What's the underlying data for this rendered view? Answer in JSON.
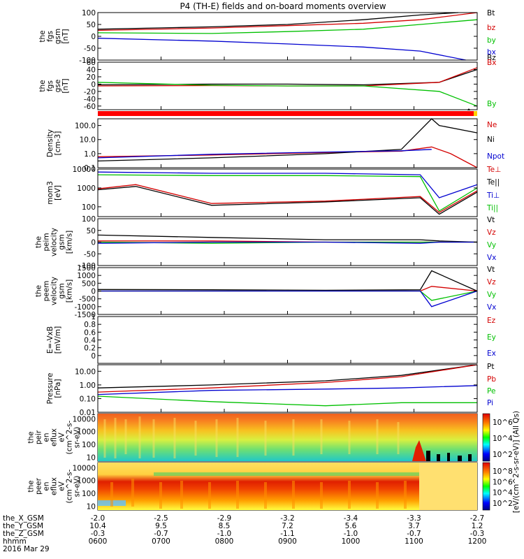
{
  "figure": {
    "title": "P4 (TH-E) fields and on-board moments overview",
    "date_label": "2016 Mar 29",
    "colorbar_label": "[eV/(cm^2-s-sr-eV)] (All Qs)"
  },
  "chart_data": [
    {
      "type": "line",
      "id": "fgs_gsm",
      "ylabel": [
        "the",
        "fgs",
        "gsm",
        "[nT]"
      ],
      "ylim": [
        -100,
        100
      ],
      "yticks": [
        100,
        50,
        0,
        -50,
        -100
      ],
      "yscale": "linear",
      "series": [
        {
          "name": "Bt",
          "color": "#000000",
          "x": [
            0,
            0.3,
            0.5,
            0.7,
            0.85,
            0.95
          ],
          "y": [
            30,
            40,
            50,
            70,
            90,
            100
          ]
        },
        {
          "name": "bz",
          "color": "#d40000",
          "x": [
            0,
            0.3,
            0.5,
            0.7,
            0.85,
            1.0
          ],
          "y": [
            25,
            35,
            45,
            55,
            70,
            100
          ]
        },
        {
          "name": "by",
          "color": "#00c000",
          "x": [
            0,
            0.3,
            0.5,
            0.7,
            0.85,
            1.0
          ],
          "y": [
            15,
            12,
            20,
            30,
            50,
            70
          ]
        },
        {
          "name": "bx",
          "color": "#0000d0",
          "x": [
            0,
            0.3,
            0.5,
            0.7,
            0.85,
            0.97
          ],
          "y": [
            -8,
            -20,
            -32,
            -45,
            -62,
            -100
          ]
        }
      ]
    },
    {
      "type": "line",
      "id": "fgs_gse",
      "ylabel": [
        "the",
        "fgs",
        "gse",
        "[nT]"
      ],
      "ylim": [
        -70,
        60
      ],
      "yticks": [
        60,
        40,
        20,
        0,
        -20,
        -40,
        -60
      ],
      "yscale": "linear",
      "series": [
        {
          "name": "Bz",
          "color": "#000000",
          "x": [
            0,
            0.3,
            0.5,
            0.7,
            0.9,
            1.0
          ],
          "y": [
            -2,
            0,
            0,
            -2,
            5,
            40
          ]
        },
        {
          "name": "Bx",
          "color": "#d40000",
          "x": [
            0,
            0.3,
            0.5,
            0.7,
            0.9,
            1.0
          ],
          "y": [
            -5,
            -4,
            -5,
            -5,
            5,
            45
          ]
        },
        {
          "name": "By",
          "color": "#00c000",
          "x": [
            0,
            0.3,
            0.5,
            0.7,
            0.9,
            1.0
          ],
          "y": [
            5,
            -3,
            -5,
            -5,
            -20,
            -60
          ]
        }
      ]
    },
    {
      "type": "line",
      "id": "density",
      "ylabel": [
        "Density",
        "[cm-3]"
      ],
      "ylim": [
        0.1,
        300
      ],
      "yticks": [
        100.0,
        10.0,
        1.0,
        0.1
      ],
      "ytick_labels": [
        "100.0",
        "10.0",
        "1.0",
        "0.1"
      ],
      "yscale": "log",
      "series": [
        {
          "name": "Ne",
          "color": "#d40000",
          "x": [
            0,
            0.3,
            0.6,
            0.8,
            0.88,
            0.93,
            1.0
          ],
          "y": [
            0.6,
            0.8,
            1.2,
            1.5,
            3,
            1,
            0.1
          ]
        },
        {
          "name": "Ni",
          "color": "#000000",
          "x": [
            0,
            0.3,
            0.6,
            0.8,
            0.88,
            0.9,
            1.0
          ],
          "y": [
            0.3,
            0.5,
            1.0,
            2,
            300,
            100,
            30
          ]
        },
        {
          "name": "Npot",
          "color": "#0000d0",
          "x": [
            0,
            0.3,
            0.6,
            0.8,
            0.88
          ],
          "y": [
            0.5,
            0.9,
            1.3,
            1.6,
            2
          ]
        }
      ]
    },
    {
      "type": "line",
      "id": "temperature",
      "ylabel": [
        "mom3",
        "[eV]"
      ],
      "ylim": [
        30,
        10000
      ],
      "yticks": [
        10000,
        1000,
        100
      ],
      "ytick_labels": [
        "10000",
        "1000",
        "100"
      ],
      "yscale": "log",
      "series": [
        {
          "name": "Te⊥",
          "color": "#d40000",
          "x": [
            0,
            0.1,
            0.3,
            0.6,
            0.85,
            0.9,
            1.0
          ],
          "y": [
            900,
            1500,
            150,
            200,
            350,
            50,
            700
          ]
        },
        {
          "name": "Te||",
          "color": "#000000",
          "x": [
            0,
            0.1,
            0.3,
            0.6,
            0.85,
            0.9,
            1.0
          ],
          "y": [
            800,
            1200,
            120,
            180,
            300,
            40,
            600
          ]
        },
        {
          "name": "Ti⊥",
          "color": "#0000d0",
          "x": [
            0,
            0.3,
            0.6,
            0.85,
            0.9,
            1.0
          ],
          "y": [
            7000,
            6000,
            6000,
            5000,
            300,
            1500
          ]
        },
        {
          "name": "Ti||",
          "color": "#00c000",
          "x": [
            0,
            0.3,
            0.6,
            0.85,
            0.9,
            1.0
          ],
          "y": [
            5000,
            4500,
            4500,
            4000,
            60,
            1000
          ]
        }
      ]
    },
    {
      "type": "line",
      "id": "peim_velocity",
      "ylabel": [
        "the",
        "peim",
        "velocity",
        "gsm",
        "[km/s]"
      ],
      "ylim": [
        -100,
        100
      ],
      "yticks": [
        100,
        50,
        0,
        -50,
        -100
      ],
      "yscale": "linear",
      "series": [
        {
          "name": "Vt",
          "color": "#000000",
          "x": [
            0,
            0.3,
            0.6,
            0.85,
            0.9,
            1.0
          ],
          "y": [
            30,
            20,
            10,
            10,
            5,
            0
          ]
        },
        {
          "name": "Vz",
          "color": "#d40000",
          "x": [
            0,
            0.3,
            0.6,
            0.85,
            0.9,
            1.0
          ],
          "y": [
            5,
            5,
            0,
            0,
            0,
            0
          ]
        },
        {
          "name": "Vy",
          "color": "#00c000",
          "x": [
            0,
            0.3,
            0.6,
            0.85,
            0.9,
            1.0
          ],
          "y": [
            0,
            -5,
            0,
            0,
            0,
            0
          ]
        },
        {
          "name": "Vx",
          "color": "#0000d0",
          "x": [
            0,
            0.3,
            0.6,
            0.85,
            0.9,
            1.0
          ],
          "y": [
            -5,
            0,
            0,
            -5,
            0,
            0
          ]
        }
      ]
    },
    {
      "type": "line",
      "id": "peem_velocity",
      "ylabel": [
        "the",
        "peem",
        "velocity",
        "gsm",
        "[km/s]"
      ],
      "ylim": [
        -1500,
        1500
      ],
      "yticks": [
        1500,
        1000,
        500,
        0,
        -500,
        -1000,
        -1500
      ],
      "yscale": "linear",
      "series": [
        {
          "name": "Vt",
          "color": "#000000",
          "x": [
            0,
            0.3,
            0.6,
            0.85,
            0.88,
            1.0
          ],
          "y": [
            100,
            80,
            50,
            80,
            1300,
            0
          ]
        },
        {
          "name": "Vz",
          "color": "#d40000",
          "x": [
            0,
            0.3,
            0.6,
            0.85,
            0.88,
            1.0
          ],
          "y": [
            0,
            0,
            0,
            0,
            300,
            0
          ]
        },
        {
          "name": "Vy",
          "color": "#00c000",
          "x": [
            0,
            0.3,
            0.6,
            0.85,
            0.88,
            1.0
          ],
          "y": [
            0,
            0,
            0,
            0,
            -600,
            0
          ]
        },
        {
          "name": "Vx",
          "color": "#0000d0",
          "x": [
            0,
            0.3,
            0.6,
            0.85,
            0.88,
            1.0
          ],
          "y": [
            0,
            0,
            0,
            0,
            -1000,
            0
          ]
        }
      ]
    },
    {
      "type": "line",
      "id": "e_field",
      "ylabel": [
        "E=-VxB",
        "[mV/m]"
      ],
      "ylim": [
        -0.2,
        1.0
      ],
      "yticks": [
        1.0,
        0.8,
        0.6,
        0.4,
        0.2,
        0.0
      ],
      "yscale": "linear",
      "series": [
        {
          "name": "Ez",
          "color": "#d40000",
          "x": [],
          "y": []
        },
        {
          "name": "Ey",
          "color": "#00c000",
          "x": [],
          "y": []
        },
        {
          "name": "Ex",
          "color": "#0000d0",
          "x": [],
          "y": []
        }
      ]
    },
    {
      "type": "line",
      "id": "pressure",
      "ylabel": [
        "Pressure",
        "[nPa]"
      ],
      "ylim": [
        0.01,
        30
      ],
      "yticks": [
        10.0,
        1.0,
        0.1,
        0.01
      ],
      "ytick_labels": [
        "10.00",
        "1.00",
        "0.10",
        "0.01"
      ],
      "yscale": "log",
      "series": [
        {
          "name": "Pt",
          "color": "#000000",
          "x": [
            0,
            0.3,
            0.6,
            0.8,
            1.0
          ],
          "y": [
            0.6,
            1.0,
            2.0,
            5.0,
            40
          ]
        },
        {
          "name": "Pb",
          "color": "#d40000",
          "x": [
            0,
            0.3,
            0.6,
            0.8,
            1.0
          ],
          "y": [
            0.3,
            0.6,
            1.5,
            4.0,
            40
          ]
        },
        {
          "name": "Pe",
          "color": "#00c000",
          "x": [
            0,
            0.3,
            0.6,
            0.8,
            1.0
          ],
          "y": [
            0.15,
            0.06,
            0.03,
            0.05,
            0.05
          ]
        },
        {
          "name": "Pi",
          "color": "#0000d0",
          "x": [
            0,
            0.3,
            0.6,
            0.8,
            1.0
          ],
          "y": [
            0.2,
            0.4,
            0.5,
            0.6,
            0.9
          ]
        }
      ]
    },
    {
      "type": "heatmap",
      "id": "peir_en_eflux",
      "ylabel": [
        "the",
        "peir",
        "en",
        "eflux",
        "eV",
        "(cm^2-s-",
        "sr-eV)"
      ],
      "ylim": [
        5,
        25000
      ],
      "yticks": [
        10000,
        1000,
        100,
        10
      ],
      "yscale": "log",
      "colorbar_ticks": [
        "10^6",
        "10^4",
        "10^2"
      ]
    },
    {
      "type": "heatmap",
      "id": "peer_en_eflux",
      "ylabel": [
        "the",
        "peer",
        "en",
        "eflux",
        "eV",
        "(cm^2-s-",
        "sr-eV)"
      ],
      "ylim": [
        5,
        25000
      ],
      "yticks": [
        10000,
        1000,
        100,
        10
      ],
      "yscale": "log",
      "colorbar_ticks": [
        "10^8",
        "10^6",
        "10^4",
        "10^2"
      ]
    }
  ],
  "x_axis": {
    "row_labels": [
      "the_X_GSM",
      "the_Y_GSM",
      "the_Z_GSM",
      "hhmm",
      "2016 Mar 29"
    ],
    "columns": [
      {
        "X": "-2.0",
        "Y": "10.4",
        "Z": "-0.3",
        "hhmm": "0600"
      },
      {
        "X": "-2.5",
        "Y": "9.5",
        "Z": "-0.7",
        "hhmm": "0700"
      },
      {
        "X": "-2.9",
        "Y": "8.5",
        "Z": "-1.0",
        "hhmm": "0800"
      },
      {
        "X": "-3.2",
        "Y": "7.2",
        "Z": "-1.1",
        "hhmm": "0900"
      },
      {
        "X": "-3.4",
        "Y": "5.6",
        "Z": "-1.0",
        "hhmm": "1000"
      },
      {
        "X": "-3.3",
        "Y": "3.7",
        "Z": "-0.7",
        "hhmm": "1100"
      },
      {
        "X": "-2.7",
        "Y": "1.2",
        "Z": "-0.3",
        "hhmm": "1200"
      }
    ]
  }
}
